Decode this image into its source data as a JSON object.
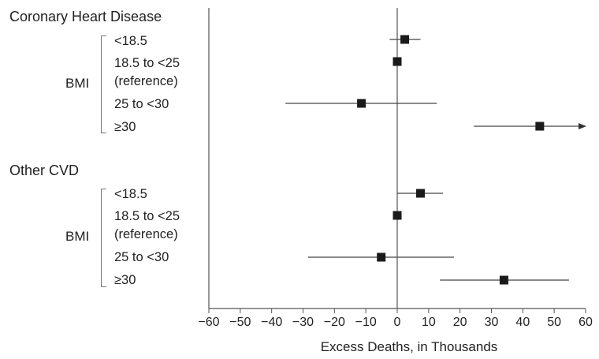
{
  "chart_data": {
    "type": "forest",
    "xlabel": "Excess Deaths, in Thousands",
    "xlim": [
      -60,
      60
    ],
    "xticks": [
      "−60",
      "−50",
      "−40",
      "−30",
      "−20",
      "−10",
      "0",
      "10",
      "20",
      "30",
      "40",
      "50",
      "60"
    ],
    "reference_line": 0,
    "groups": [
      {
        "title": "Coronary Heart Disease",
        "bracket_label": "BMI",
        "rows": [
          {
            "label": "<18.5",
            "sublabel": "",
            "estimate": 2.4,
            "lower": -2.4,
            "upper": 7.4
          },
          {
            "label": "18.5 to <25",
            "sublabel": "(reference)",
            "estimate": 0,
            "lower": 0,
            "upper": 0
          },
          {
            "label": "25 to <30",
            "sublabel": "",
            "estimate": -11.4,
            "lower": -35.6,
            "upper": 12.6
          },
          {
            "label": "≥30",
            "sublabel": "",
            "estimate": 45.4,
            "lower": 24.4,
            "upper": 60,
            "upper_truncated": true
          }
        ]
      },
      {
        "title": "Other CVD",
        "bracket_label": "BMI",
        "rows": [
          {
            "label": "<18.5",
            "sublabel": "",
            "estimate": 7.4,
            "lower": 0,
            "upper": 14.6
          },
          {
            "label": "18.5 to <25",
            "sublabel": "(reference)",
            "estimate": 0,
            "lower": 0,
            "upper": 0
          },
          {
            "label": "25 to <30",
            "sublabel": "",
            "estimate": -5.1,
            "lower": -28.4,
            "upper": 18.1
          },
          {
            "label": "≥30",
            "sublabel": "",
            "estimate": 34.0,
            "lower": 13.6,
            "upper": 54.7
          }
        ]
      }
    ]
  }
}
